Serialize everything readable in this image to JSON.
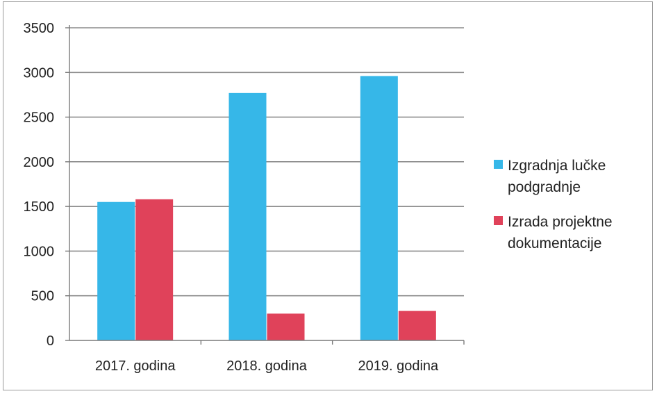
{
  "chart_data": {
    "type": "bar",
    "categories": [
      "2017. godina",
      "2018. godina",
      "2019. godina"
    ],
    "series": [
      {
        "name": "Izgradnja lučke podgradnje",
        "color": "#36b7e8",
        "values": [
          1550,
          2770,
          2960
        ]
      },
      {
        "name": "Izrada projektne dokumentacije",
        "color": "#e0425a",
        "values": [
          1580,
          300,
          330
        ]
      }
    ],
    "title": "",
    "xlabel": "",
    "ylabel": "",
    "ylim": [
      0,
      3500
    ],
    "yticks": [
      0,
      500,
      1000,
      1500,
      2000,
      2500,
      3000,
      3500
    ],
    "grid": true,
    "legend_position": "right"
  },
  "legend": {
    "items": [
      {
        "lines": [
          "Izgradnja lučke",
          "podgradnje"
        ]
      },
      {
        "lines": [
          "Izrada projektne",
          "dokumentacije"
        ]
      }
    ]
  }
}
